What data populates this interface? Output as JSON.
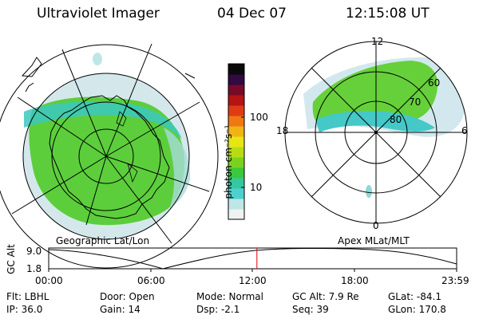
{
  "header": {
    "instrument": "Ultraviolet Imager",
    "date": "04 Dec 07",
    "time": "12:15:08 UT"
  },
  "colorbar": {
    "unit_label": "photon cm⁻²s⁻¹",
    "ticks": [
      "100",
      "10"
    ],
    "colors": [
      "#eef2f0",
      "#bfe6e6",
      "#4fd0d0",
      "#35c8a0",
      "#3cc83c",
      "#7ad21e",
      "#b8dc14",
      "#e6e614",
      "#f0b414",
      "#f07814",
      "#e03c14",
      "#b41414",
      "#780a28",
      "#300a40",
      "#0a0a0a"
    ]
  },
  "left_map": {
    "caption": "Geographic Lat/Lon",
    "aurora_colors": {
      "core": "#55cc33",
      "edge": "#3cc8c0",
      "faint": "#cfe6ea"
    }
  },
  "right_map": {
    "caption": "Apex MLat/MLT",
    "mlt_labels": [
      "12",
      "18",
      "6",
      "0"
    ],
    "mlat_labels": [
      "60",
      "70",
      "80"
    ],
    "aurora_colors": {
      "core": "#66d03a",
      "edge": "#45c8c8",
      "faint": "#d2e8ee"
    }
  },
  "altitude_plot": {
    "ylabel": "GC Alt",
    "y_ticks": [
      "9.0",
      "1.8"
    ],
    "x_ticks": [
      "00:00",
      "06:00",
      "12:00",
      "18:00",
      "23:59"
    ],
    "marker_color": "#dd0000",
    "marker_hour": 12.25
  },
  "info": {
    "filter": "Flt: LBHL",
    "door": "Door: Open",
    "mode": "Mode: Normal",
    "gc_alt": "GC Alt: 7.9 Re",
    "glat": "GLat: -84.1",
    "ip": "IP: 36.0",
    "gain": "Gain: 14",
    "dsp": "Dsp:    -2.1",
    "seq": "Seq: 39",
    "glon": "GLon: 170.8"
  }
}
